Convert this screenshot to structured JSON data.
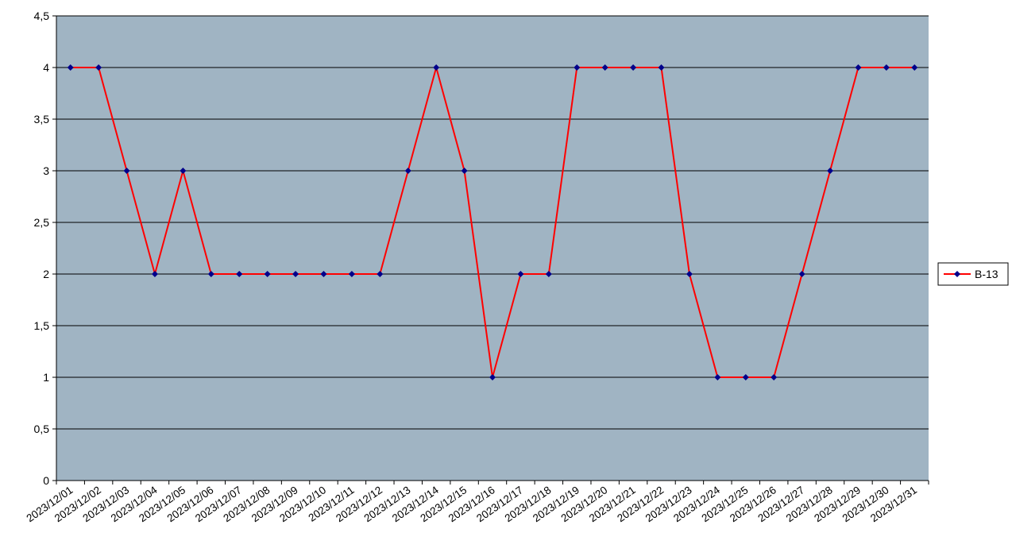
{
  "chart_data": {
    "type": "line",
    "title": "",
    "xlabel": "",
    "ylabel": "",
    "ylim": [
      0,
      4.5
    ],
    "y_ticks": [
      "0",
      "0,5",
      "1",
      "1,5",
      "2",
      "2,5",
      "3",
      "3,5",
      "4",
      "4,5"
    ],
    "y_tick_values": [
      0,
      0.5,
      1,
      1.5,
      2,
      2.5,
      3,
      3.5,
      4,
      4.5
    ],
    "grid": true,
    "legend_position": "right",
    "categories": [
      "2023/12/01",
      "2023/12/02",
      "2023/12/03",
      "2023/12/04",
      "2023/12/05",
      "2023/12/06",
      "2023/12/07",
      "2023/12/08",
      "2023/12/09",
      "2023/12/10",
      "2023/12/11",
      "2023/12/12",
      "2023/12/13",
      "2023/12/14",
      "2023/12/15",
      "2023/12/16",
      "2023/12/17",
      "2023/12/18",
      "2023/12/19",
      "2023/12/20",
      "2023/12/21",
      "2023/12/22",
      "2023/12/23",
      "2023/12/24",
      "2023/12/25",
      "2023/12/26",
      "2023/12/27",
      "2023/12/28",
      "2023/12/29",
      "2023/12/30",
      "2023/12/31"
    ],
    "series": [
      {
        "name": "B-13",
        "line_color": "#ff0000",
        "marker_color": "#00008b",
        "values": [
          4,
          4,
          3,
          2,
          3,
          2,
          2,
          2,
          2,
          2,
          2,
          2,
          3,
          4,
          3,
          1,
          2,
          2,
          4,
          4,
          4,
          4,
          2,
          1,
          1,
          1,
          2,
          3,
          4,
          4,
          4
        ]
      }
    ],
    "colors": {
      "plot_background": "#a0b4c3",
      "grid_line": "#000000",
      "axis": "#000000"
    }
  }
}
